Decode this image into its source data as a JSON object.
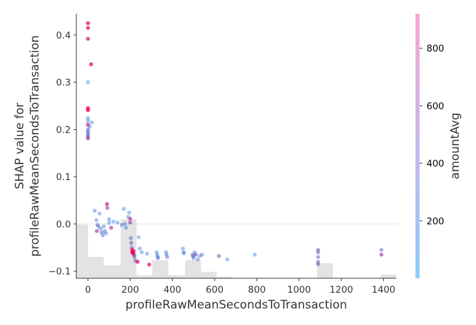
{
  "chart_data": {
    "type": "scatter",
    "title": "",
    "xlabel": "profileRawMeanSecondsToTransaction",
    "ylabel": [
      "SHAP value for",
      "profileRawMeanSecondsToTransaction"
    ],
    "xlim": [
      -55,
      1460
    ],
    "ylim": [
      -0.115,
      0.445
    ],
    "xticks": [
      0,
      200,
      400,
      600,
      800,
      1000,
      1200,
      1400
    ],
    "yticks": [
      -0.1,
      0.0,
      0.1,
      0.2,
      0.3,
      0.4
    ],
    "x_tick_labels": [
      "0",
      "200",
      "400",
      "600",
      "800",
      "1000",
      "1200",
      "1400"
    ],
    "y_tick_labels": [
      "−0.1",
      "0.0",
      "0.1",
      "0.2",
      "0.3",
      "0.4"
    ],
    "grid": false,
    "zero_reference_line": true,
    "histogram_bins": [
      {
        "x0": -55,
        "x1": 0,
        "h": 1.0
      },
      {
        "x0": 0,
        "x1": 75,
        "h": 0.4
      },
      {
        "x0": 75,
        "x1": 155,
        "h": 0.24
      },
      {
        "x0": 155,
        "x1": 230,
        "h": 1.1
      },
      {
        "x0": 230,
        "x1": 305,
        "h": 0.06
      },
      {
        "x0": 305,
        "x1": 380,
        "h": 0.34
      },
      {
        "x0": 380,
        "x1": 460,
        "h": 0.06
      },
      {
        "x0": 460,
        "x1": 535,
        "h": 0.34
      },
      {
        "x0": 535,
        "x1": 610,
        "h": 0.12
      },
      {
        "x0": 610,
        "x1": 685,
        "h": 0.03
      },
      {
        "x0": 1085,
        "x1": 1160,
        "h": 0.28
      },
      {
        "x0": 1385,
        "x1": 1460,
        "h": 0.07
      }
    ],
    "colorbar": {
      "label": "amountAvg",
      "range": [
        0,
        920
      ],
      "ticks": [
        200,
        400,
        600,
        800
      ],
      "tick_labels": [
        "200",
        "400",
        "600",
        "800"
      ]
    },
    "colormap": {
      "low": "#008bfb",
      "high": "#ff0052"
    },
    "points": [
      {
        "x": 0,
        "y": 0.425,
        "c": 850
      },
      {
        "x": 0,
        "y": 0.415,
        "c": 800
      },
      {
        "x": 0,
        "y": 0.392,
        "c": 780
      },
      {
        "x": 15,
        "y": 0.338,
        "c": 820
      },
      {
        "x": 0,
        "y": 0.3,
        "c": 120
      },
      {
        "x": 0,
        "y": 0.245,
        "c": 900
      },
      {
        "x": 0,
        "y": 0.241,
        "c": 910
      },
      {
        "x": 0,
        "y": 0.224,
        "c": 150
      },
      {
        "x": 0,
        "y": 0.218,
        "c": 130
      },
      {
        "x": 18,
        "y": 0.215,
        "c": 140
      },
      {
        "x": 0,
        "y": 0.21,
        "c": 700
      },
      {
        "x": 8,
        "y": 0.206,
        "c": 160
      },
      {
        "x": 0,
        "y": 0.2,
        "c": 300
      },
      {
        "x": 0,
        "y": 0.196,
        "c": 250
      },
      {
        "x": 0,
        "y": 0.192,
        "c": 280
      },
      {
        "x": 0,
        "y": 0.188,
        "c": 350
      },
      {
        "x": 0,
        "y": 0.184,
        "c": 400
      },
      {
        "x": 0,
        "y": 0.181,
        "c": 500
      },
      {
        "x": 32,
        "y": 0.028,
        "c": 200
      },
      {
        "x": 40,
        "y": 0.008,
        "c": 150
      },
      {
        "x": 45,
        "y": -0.002,
        "c": 300
      },
      {
        "x": 50,
        "y": -0.005,
        "c": 200
      },
      {
        "x": 55,
        "y": 0.022,
        "c": 150
      },
      {
        "x": 60,
        "y": -0.01,
        "c": 250
      },
      {
        "x": 65,
        "y": -0.018,
        "c": 300
      },
      {
        "x": 70,
        "y": -0.024,
        "c": 220
      },
      {
        "x": 42,
        "y": -0.015,
        "c": 600
      },
      {
        "x": 75,
        "y": -0.005,
        "c": 180
      },
      {
        "x": 80,
        "y": -0.015,
        "c": 280
      },
      {
        "x": 85,
        "y": -0.02,
        "c": 150
      },
      {
        "x": 90,
        "y": 0.042,
        "c": 700
      },
      {
        "x": 92,
        "y": 0.034,
        "c": 500
      },
      {
        "x": 100,
        "y": 0.01,
        "c": 200
      },
      {
        "x": 100,
        "y": 0.002,
        "c": 150
      },
      {
        "x": 110,
        "y": -0.008,
        "c": 600
      },
      {
        "x": 120,
        "y": 0.005,
        "c": 130
      },
      {
        "x": 140,
        "y": 0.003,
        "c": 120
      },
      {
        "x": 160,
        "y": -0.002,
        "c": 200
      },
      {
        "x": 170,
        "y": 0.032,
        "c": 130
      },
      {
        "x": 175,
        "y": 0.0,
        "c": 200
      },
      {
        "x": 180,
        "y": -0.008,
        "c": 180
      },
      {
        "x": 190,
        "y": 0.015,
        "c": 140
      },
      {
        "x": 195,
        "y": 0.024,
        "c": 150
      },
      {
        "x": 200,
        "y": 0.011,
        "c": 650
      },
      {
        "x": 200,
        "y": 0.003,
        "c": 500
      },
      {
        "x": 203,
        "y": -0.03,
        "c": 300
      },
      {
        "x": 205,
        "y": -0.04,
        "c": 400
      },
      {
        "x": 207,
        "y": -0.05,
        "c": 350
      },
      {
        "x": 210,
        "y": -0.055,
        "c": 880
      },
      {
        "x": 210,
        "y": -0.06,
        "c": 900
      },
      {
        "x": 213,
        "y": -0.062,
        "c": 870
      },
      {
        "x": 215,
        "y": -0.058,
        "c": 890
      },
      {
        "x": 218,
        "y": -0.065,
        "c": 600
      },
      {
        "x": 220,
        "y": -0.07,
        "c": 350
      },
      {
        "x": 225,
        "y": -0.078,
        "c": 400
      },
      {
        "x": 235,
        "y": -0.08,
        "c": 800
      },
      {
        "x": 240,
        "y": -0.028,
        "c": 130
      },
      {
        "x": 245,
        "y": -0.052,
        "c": 150
      },
      {
        "x": 255,
        "y": -0.06,
        "c": 140
      },
      {
        "x": 280,
        "y": -0.063,
        "c": 150
      },
      {
        "x": 290,
        "y": -0.086,
        "c": 760
      },
      {
        "x": 325,
        "y": -0.06,
        "c": 150
      },
      {
        "x": 328,
        "y": -0.065,
        "c": 180
      },
      {
        "x": 330,
        "y": -0.07,
        "c": 200
      },
      {
        "x": 332,
        "y": -0.072,
        "c": 250
      },
      {
        "x": 370,
        "y": -0.06,
        "c": 150
      },
      {
        "x": 372,
        "y": -0.065,
        "c": 200
      },
      {
        "x": 375,
        "y": -0.07,
        "c": 250
      },
      {
        "x": 450,
        "y": -0.052,
        "c": 130
      },
      {
        "x": 452,
        "y": -0.06,
        "c": 150
      },
      {
        "x": 455,
        "y": -0.062,
        "c": 200
      },
      {
        "x": 495,
        "y": -0.065,
        "c": 200
      },
      {
        "x": 498,
        "y": -0.068,
        "c": 300
      },
      {
        "x": 500,
        "y": -0.072,
        "c": 250
      },
      {
        "x": 505,
        "y": -0.06,
        "c": 150
      },
      {
        "x": 510,
        "y": -0.065,
        "c": 500
      },
      {
        "x": 520,
        "y": -0.075,
        "c": 200
      },
      {
        "x": 530,
        "y": -0.068,
        "c": 150
      },
      {
        "x": 540,
        "y": -0.065,
        "c": 180
      },
      {
        "x": 620,
        "y": -0.068,
        "c": 400
      },
      {
        "x": 660,
        "y": -0.075,
        "c": 130
      },
      {
        "x": 790,
        "y": -0.065,
        "c": 120
      },
      {
        "x": 1090,
        "y": -0.055,
        "c": 400
      },
      {
        "x": 1090,
        "y": -0.06,
        "c": 350
      },
      {
        "x": 1090,
        "y": -0.07,
        "c": 300
      },
      {
        "x": 1090,
        "y": -0.08,
        "c": 350
      },
      {
        "x": 1090,
        "y": -0.085,
        "c": 450
      },
      {
        "x": 1390,
        "y": -0.055,
        "c": 300
      },
      {
        "x": 1390,
        "y": -0.065,
        "c": 550
      }
    ]
  }
}
